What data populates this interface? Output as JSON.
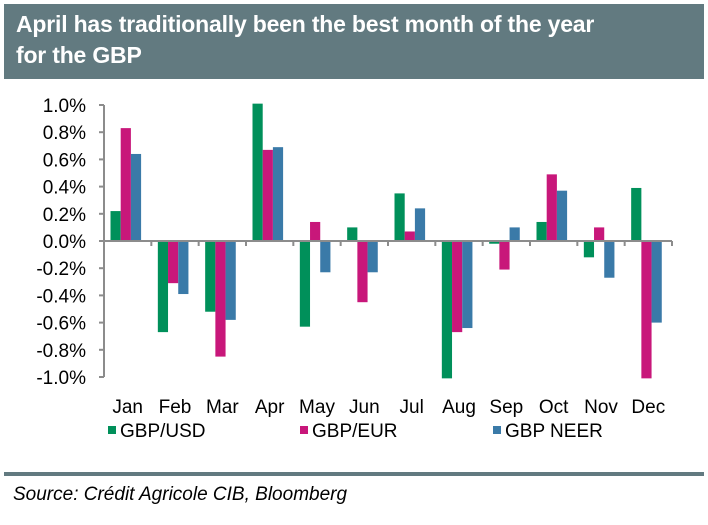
{
  "header": {
    "title_line1": "April has traditionally been the best month of the year",
    "title_line2": "for the GBP"
  },
  "colors": {
    "header_bg": "#627a80",
    "gbp_usd": "#00905a",
    "gbp_eur": "#c8177a",
    "gbp_neer": "#3a7aa8"
  },
  "chart_data": {
    "type": "bar",
    "title": "April has traditionally been the best month of the year for the GBP",
    "xlabel": "",
    "ylabel": "",
    "ylim": [
      -1.0,
      1.0
    ],
    "yticks": [
      "1.0%",
      "0.8%",
      "0.6%",
      "0.4%",
      "0.2%",
      "0.0%",
      "-0.2%",
      "-0.4%",
      "-0.6%",
      "-0.8%",
      "-1.0%"
    ],
    "ytick_values": [
      1.0,
      0.8,
      0.6,
      0.4,
      0.2,
      0.0,
      -0.2,
      -0.4,
      -0.6,
      -0.8,
      -1.0
    ],
    "unit": "%",
    "grid": false,
    "legend_position": "bottom",
    "categories": [
      "Jan",
      "Feb",
      "Mar",
      "Apr",
      "May",
      "Jun",
      "Jul",
      "Aug",
      "Sep",
      "Oct",
      "Nov",
      "Dec"
    ],
    "series": [
      {
        "name": "GBP/USD",
        "color": "#00905a",
        "values": [
          0.22,
          -0.67,
          -0.52,
          1.01,
          -0.63,
          0.1,
          0.35,
          -1.01,
          -0.02,
          0.14,
          -0.12,
          0.39
        ]
      },
      {
        "name": "GBP/EUR",
        "color": "#c8177a",
        "values": [
          0.83,
          -0.31,
          -0.85,
          0.67,
          0.14,
          -0.45,
          0.07,
          -0.67,
          -0.21,
          0.49,
          0.1,
          -1.01
        ]
      },
      {
        "name": "GBP NEER",
        "color": "#3a7aa8",
        "values": [
          0.64,
          -0.39,
          -0.58,
          0.69,
          -0.23,
          -0.23,
          0.24,
          -0.64,
          0.1,
          0.37,
          -0.27,
          -0.6
        ]
      }
    ]
  },
  "legend": {
    "items": [
      "GBP/USD",
      "GBP/EUR",
      "GBP NEER"
    ]
  },
  "footer": {
    "source": "Source: Crédit Agricole CIB, Bloomberg"
  }
}
